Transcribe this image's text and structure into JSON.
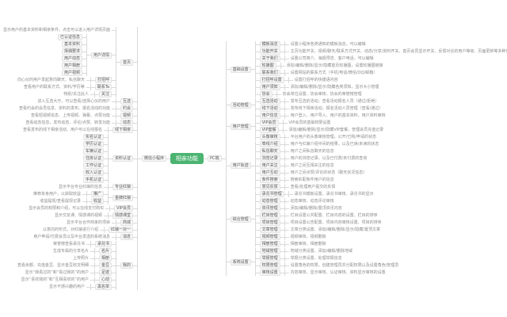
{
  "root": {
    "label": "相亲功能"
  },
  "colors": {
    "root_bg": "#4cb471",
    "root_text": "#ffffff",
    "node_bg": "#f6f6f6",
    "node_border": "#e2e2e2",
    "connector_line": "#d9d9d9",
    "leaf_text": "#8c8c8c"
  },
  "left": {
    "label": "微信小程序",
    "children": [
      {
        "label": "首页",
        "children": [
          {
            "label": "显示用户的基本资料和相亲条件，点击可以进入用户详情页面",
            "plain": true
          },
          {
            "label": "用户详情",
            "children": [
              {
                "label": "已认证信息"
              },
              {
                "label": "基本资料"
              },
              {
                "label": "择偶要求"
              },
              {
                "label": "用户动态"
              },
              {
                "label": "用户相册"
              },
              {
                "label": "用户视频"
              }
            ]
          },
          {
            "label": "打招呼",
            "children": [
              {
                "label": "向心仪的用户发起意向聊天、私信聊天",
                "plain": true
              }
            ]
          },
          {
            "label": "联系Ta",
            "children": [
              {
                "label": "查看用户的联系方式、资料/学历等",
                "plain": true
              }
            ]
          },
          {
            "label": "关注",
            "children": [
              {
                "label": "特别/关注此人",
                "plain": true
              }
            ]
          }
        ]
      },
      {
        "label": "互选",
        "children": [
          {
            "label": "进入互选大厅，可以查看/选择心仪的用户",
            "plain": true
          }
        ]
      },
      {
        "label": "约会",
        "children": [
          {
            "label": "查看约会的会员信息、资料的发布、报名活动的功能",
            "plain": true
          }
        ]
      },
      {
        "label": "视频",
        "children": [
          {
            "label": "查看短视频信息、上传视频、弹幕、点赞功能",
            "plain": true
          }
        ]
      },
      {
        "label": "动态",
        "children": [
          {
            "label": "查看动态信息、发布动态、评论/点赞、转发功能",
            "plain": true
          }
        ]
      },
      {
        "label": "线下相亲",
        "children": [
          {
            "label": "查看发布的线下相亲活动、用户可以在线报名",
            "plain": true
          }
        ]
      },
      {
        "label": "资料认证",
        "children": [
          {
            "label": "实名认证"
          },
          {
            "label": "学历认证"
          },
          {
            "label": "车辆认证"
          },
          {
            "label": "住房认证"
          },
          {
            "label": "工作认证"
          },
          {
            "label": "收入认证"
          },
          {
            "label": "手机认证"
          }
        ]
      },
      {
        "label": "专业红娘",
        "children": [
          {
            "label": "显示平台专业红娘的信息",
            "plain": true
          }
        ]
      },
      {
        "label": "金牌红娘",
        "children": [
          {
            "label": "推广",
            "children": [
              {
                "label": "推荐单身用户，以获取收益",
                "plain": true
              }
            ]
          },
          {
            "label": "收益",
            "children": [
              {
                "label": "收益提现/查看提现记录",
                "plain": true
              }
            ]
          }
        ]
      },
      {
        "label": "VIP会员",
        "children": [
          {
            "label": "显示会员的权限和介绍，可以在线支付购买",
            "plain": true
          }
        ]
      },
      {
        "label": "情感课堂",
        "children": [
          {
            "label": "显示交友课、情感课的视频",
            "plain": true
          }
        ]
      },
      {
        "label": "商城",
        "children": [
          {
            "label": "显示平台合作商家的项目",
            "plain": true
          }
        ]
      },
      {
        "label": "红娘一对一",
        "children": [
          {
            "label": "以意向的形式，对红娘进行介绍",
            "plain": true
          }
        ]
      },
      {
        "label": "消息",
        "children": [
          {
            "label": "用户申请/付费会员以及平台发送的系统消息",
            "plain": true
          }
        ]
      },
      {
        "label": "我的",
        "children": [
          {
            "label": "承兑书",
            "children": [
              {
                "label": "荣誉榜查看承兑书",
                "plain": true
              }
            ]
          },
          {
            "label": "名片",
            "children": [
              {
                "label": "生成专属的分享名片",
                "plain": true
              }
            ]
          },
          {
            "label": "相册",
            "children": [
              {
                "label": "上传照片",
                "plain": true
              }
            ]
          },
          {
            "label": "金豆",
            "children": [
              {
                "label": "查看余额、充值金豆、显示金豆收支明细",
                "plain": true
              }
            ]
          },
          {
            "label": "足迹",
            "children": [
              {
                "label": "显示“我看过的”和“看过我的”的用户",
                "plain": true
              }
            ]
          },
          {
            "label": "心动",
            "children": [
              {
                "label": "显示“喜欢我的”和“互相喜欢的”的用户",
                "plain": true
              }
            ]
          },
          {
            "label": "黑名单",
            "children": [
              {
                "label": "显示不感兴趣的用户",
                "plain": true
              }
            ]
          }
        ]
      }
    ]
  },
  "right": {
    "label": "PC端",
    "children": [
      {
        "label": "基础设置",
        "children": [
          {
            "label": "模板消息",
            "children": [
              {
                "label": "设置小程序各类通知的模板消息，可以编辑",
                "plain": true
              }
            ]
          },
          {
            "label": "功能开关",
            "children": [
              {
                "label": "主页功能开关、视频/聊天/联系方式开关、动态/分享/资料开关、首页会员显示开关、反馈对比的用户等级、页面更新等多种开关的设置",
                "plain": true
              }
            ]
          },
          {
            "label": "关于我们",
            "children": [
              {
                "label": "设置公司简介、海报预览、客户电话，可以编辑",
                "plain": true
              }
            ]
          },
          {
            "label": "轮播图",
            "children": [
              {
                "label": "添加/编辑/删除/显示/隐藏首页轮播图，设置轮播图链接",
                "plain": true
              }
            ]
          },
          {
            "label": "联系我们",
            "children": [
              {
                "label": "设置网站的联系方式（手机/电话/微信/QQ/邮箱）",
                "plain": true
              }
            ]
          },
          {
            "label": "打招呼设置",
            "children": [
              {
                "label": "设置打招呼的快捷语内容",
                "plain": true
              }
            ]
          },
          {
            "label": "用户须知",
            "children": [
              {
                "label": "添加/编辑/删除/显示/隐藏各类须知，显示大小管理",
                "plain": true
              }
            ]
          },
          {
            "label": "协会",
            "children": [
              {
                "label": "协会单位设置、协会审核、协会的荣誉榜管理",
                "plain": true
              }
            ]
          }
        ]
      },
      {
        "label": "活动管理",
        "children": [
          {
            "label": "互选活动",
            "children": [
              {
                "label": "发布互选的活动，查看活动报名人员（通过/拒绝）",
                "plain": true
              }
            ]
          },
          {
            "label": "线下活动",
            "children": [
              {
                "label": "发布线下相亲活动，报名活动人员管理（查看/通过）",
                "plain": true
              }
            ]
          }
        ]
      },
      {
        "label": "用户管理",
        "children": [
          {
            "label": "用户信息",
            "children": [
              {
                "label": "用户登入、用户导入、用户的基本资料、用户资料审核",
                "plain": true
              }
            ]
          },
          {
            "label": "VIP会员",
            "children": [
              {
                "label": "VIP会员的基础权限设置",
                "plain": true
              }
            ]
          },
          {
            "label": "VIP套餐",
            "children": [
              {
                "label": "添加/编辑/删除/显示/隐藏VIP套餐，管理会员充值记录",
                "plain": true
              }
            ]
          },
          {
            "label": "头像审核",
            "children": [
              {
                "label": "平台用户的头像审核管理，公开/已购/申请的状态",
                "plain": true
              }
            ]
          }
        ]
      },
      {
        "label": "用户轨迹",
        "children": [
          {
            "label": "牵线介绍",
            "children": [
              {
                "label": "用户与红娘介绍中间的结果，以及已读/未读的状态",
                "plain": true
              }
            ]
          },
          {
            "label": "私信聊天",
            "children": [
              {
                "label": "用户之间私信聊天的信息",
                "plain": true
              }
            ]
          },
          {
            "label": "浏览记录",
            "children": [
              {
                "label": "用户的浏览记录，以及已付费/未付费的查询",
                "plain": true
              }
            ]
          },
          {
            "label": "用户关注",
            "children": [
              {
                "label": "用户之间互相关注的信息",
                "plain": true
              }
            ]
          },
          {
            "label": "用户互动",
            "children": [
              {
                "label": "用户之间点赞/评论的状态（聊天状况信息）",
                "plain": true
              }
            ]
          },
          {
            "label": "条件搜索",
            "children": [
              {
                "label": "搜索匹配条件用户的信息",
                "plain": true
              }
            ]
          },
          {
            "label": "意见反馈",
            "children": [
              {
                "label": "查看/处理用户提交的反馈",
                "plain": true
              }
            ]
          }
        ]
      },
      {
        "label": "综合管理",
        "children": [
          {
            "label": "承兑书管理",
            "children": [
              {
                "label": "承兑书模板设置、承兑书审核、承兑书的显示",
                "plain": true
              }
            ]
          },
          {
            "label": "动态管理",
            "children": [
              {
                "label": "动态审核、动态评论审核",
                "plain": true
              }
            ]
          },
          {
            "label": "资讯管理",
            "children": [
              {
                "label": "添加/编辑/删除/置顶资讯内容",
                "plain": true
              }
            ]
          },
          {
            "label": "栏目管理",
            "children": [
              {
                "label": "栏目设置公共配置、栏目内容的设置、栏目的排序",
                "plain": true
              }
            ]
          },
          {
            "label": "项目管理",
            "children": [
              {
                "label": "项目设置公告配置、项目内容审核设置、项目的排序",
                "plain": true
              }
            ]
          },
          {
            "label": "文章管理",
            "children": [
              {
                "label": "文章分类设置、添加/编辑/删除/显示/隐藏/置顶文章",
                "plain": true
              }
            ]
          },
          {
            "label": "视频管理",
            "children": [
              {
                "label": "视频审核、视频删除",
                "plain": true
              }
            ]
          },
          {
            "label": "相册管理",
            "children": [
              {
                "label": "相册审核、相册删除",
                "plain": true
              }
            ]
          }
        ]
      },
      {
        "label": "系统设置",
        "children": [
          {
            "label": "地域管理",
            "children": [
              {
                "label": "地域分类设置、添加/编辑/删除地域",
                "plain": true
              }
            ]
          },
          {
            "label": "举报管理",
            "children": [
              {
                "label": "举报分类设置、处理举报信息",
                "plain": true
              }
            ]
          },
          {
            "label": "权限管理",
            "children": [
              {
                "label": "设置角色的权限，创建管理员并分配权限以及设置角色/管理员",
                "plain": true
              }
            ]
          },
          {
            "label": "审核设置",
            "children": [
              {
                "label": "内容审核、显示审核、认证审核、资料显示审核的设置",
                "plain": true
              }
            ]
          }
        ]
      }
    ]
  }
}
